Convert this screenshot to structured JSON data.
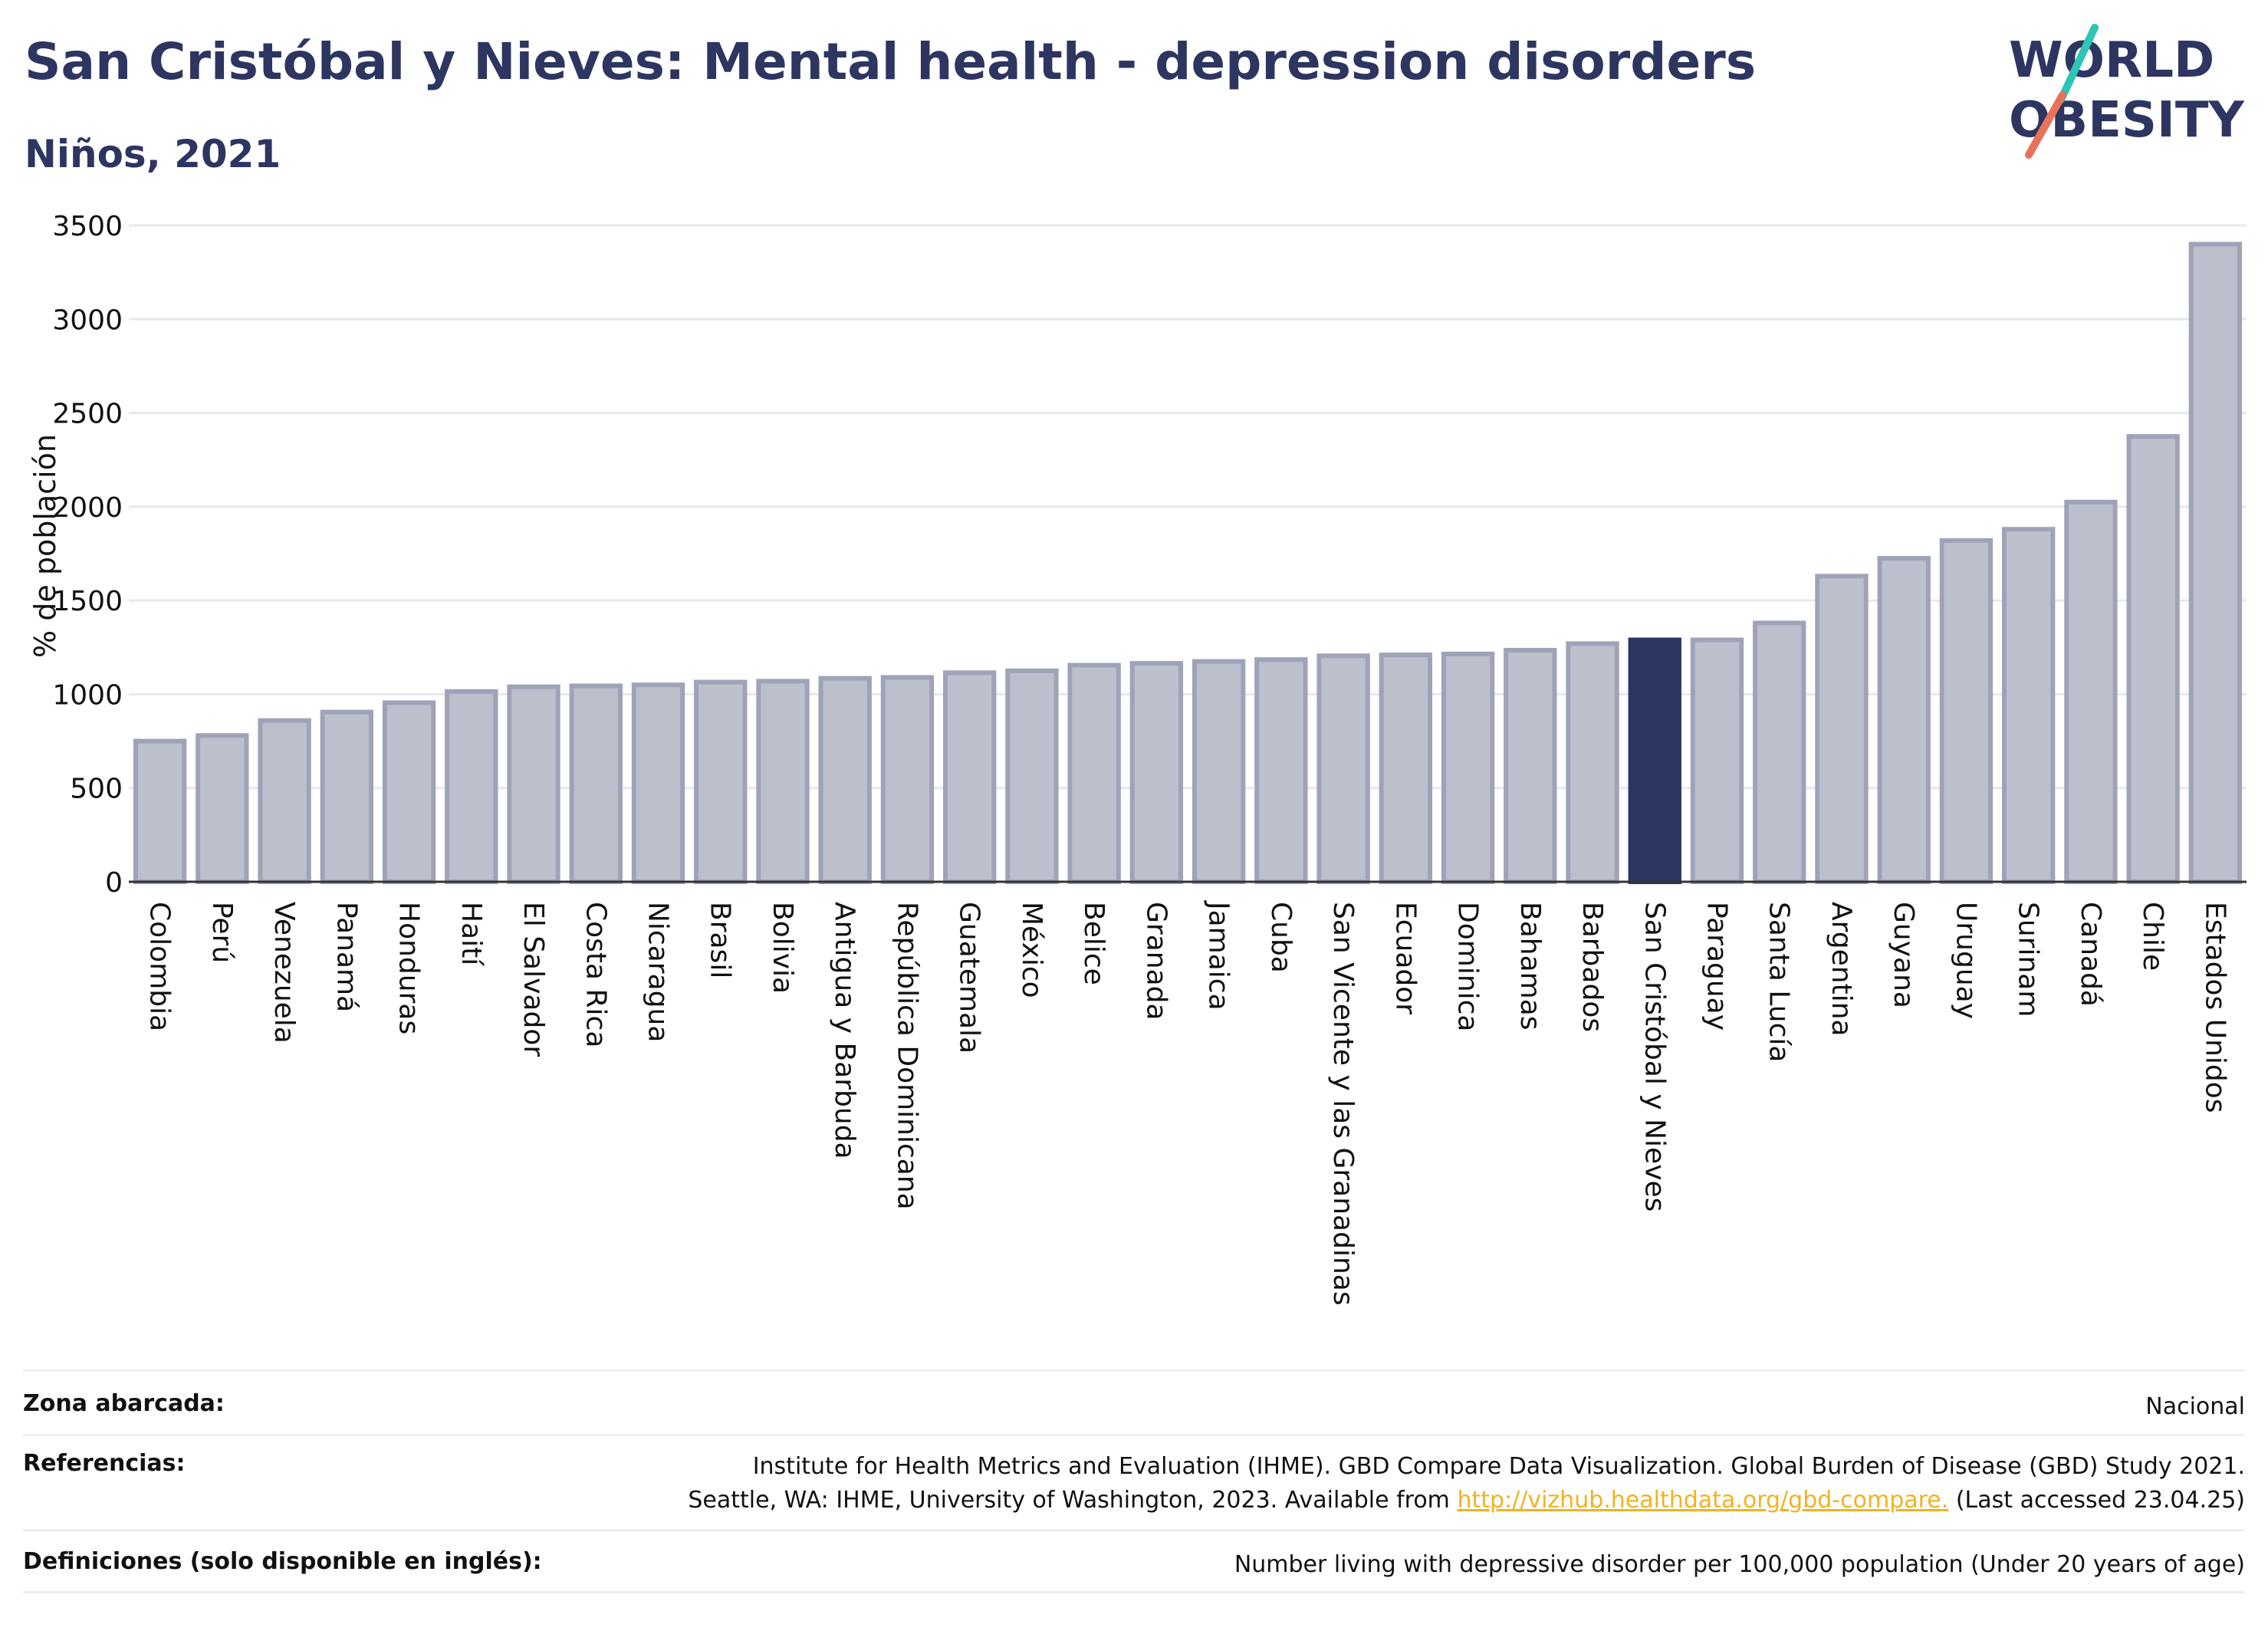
{
  "header": {
    "title": "San Cristóbal y Nieves: Mental health - depression disorders",
    "subtitle": "Niños, 2021",
    "logo_text": [
      "WORLD",
      "OBESITY"
    ]
  },
  "colors": {
    "bar": "#bcc0cd",
    "bar_stroke": "#9ea3b8",
    "highlight": "#2d3561",
    "grid": "#e6e8ee",
    "logo_teal": "#2ec4b6",
    "logo_coral": "#e8735a"
  },
  "chart_data": {
    "type": "bar",
    "title": "San Cristóbal y Nieves: Mental health - depression disorders",
    "subtitle": "Niños, 2021",
    "ylabel": "% de población",
    "xlabel": "",
    "ylim": [
      0,
      3500
    ],
    "yticks": [
      0,
      500,
      1000,
      1500,
      2000,
      2500,
      3000,
      3500
    ],
    "grid": true,
    "highlight": "San Cristóbal y Nieves",
    "categories": [
      "Colombia",
      "Perú",
      "Venezuela",
      "Panamá",
      "Honduras",
      "Haití",
      "El Salvador",
      "Costa Rica",
      "Nicaragua",
      "Brasil",
      "Bolivia",
      "Antigua y Barbuda",
      "República Dominicana",
      "Guatemala",
      "México",
      "Belice",
      "Granada",
      "Jamaica",
      "Cuba",
      "San Vicente y las Granadinas",
      "Ecuador",
      "Dominica",
      "Bahamas",
      "Barbados",
      "San Cristóbal y Nieves",
      "Paraguay",
      "Santa Lucía",
      "Argentina",
      "Guyana",
      "Uruguay",
      "Surinam",
      "Canadá",
      "Chile",
      "Estados Unidos"
    ],
    "values": [
      750,
      780,
      860,
      905,
      955,
      1015,
      1040,
      1045,
      1050,
      1065,
      1070,
      1085,
      1090,
      1115,
      1125,
      1155,
      1165,
      1175,
      1185,
      1205,
      1210,
      1215,
      1235,
      1270,
      1290,
      1290,
      1380,
      1630,
      1725,
      1820,
      1880,
      2025,
      2375,
      3400
    ]
  },
  "footer": {
    "zona_label": "Zona abarcada:",
    "zona_value": "Nacional",
    "ref_label": "Referencias:",
    "ref_line1": "Institute for Health Metrics and Evaluation (IHME). GBD Compare Data Visualization. Global Burden of Disease (GBD) Study 2021.",
    "ref_line2_pre": "Seattle, WA: IHME, University of Washington, 2023. Available from ",
    "ref_link": "http://vizhub.healthdata.org/gbd-compare.",
    "ref_line2_post": " (Last accessed 23.04.25)",
    "def_label": "Definiciones (solo disponible en inglés):",
    "def_value": "Number living with depressive disorder per 100,000 population (Under 20 years of age)"
  }
}
